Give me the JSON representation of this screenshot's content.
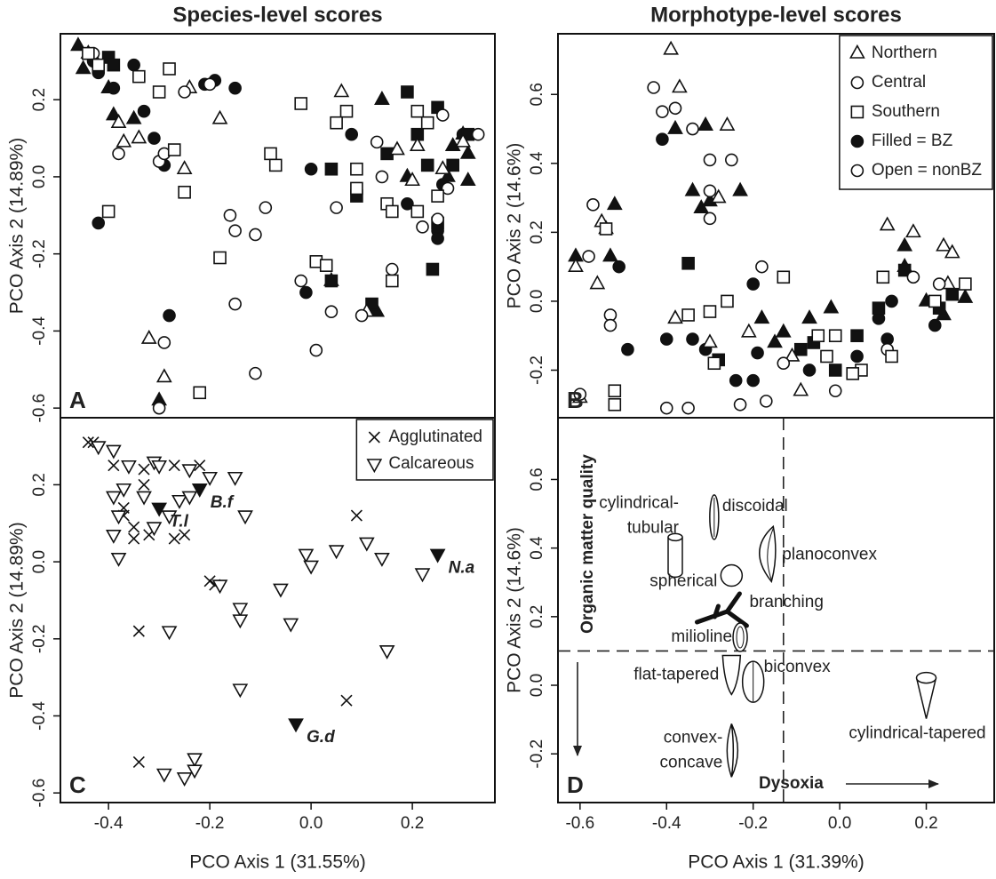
{
  "chart_data": [
    {
      "type": "scatter",
      "panel_label": "A",
      "title": "Species-level scores",
      "ylabel": "PCO Axis 2 (14.89%)",
      "xlim": [
        -0.495,
        0.363
      ],
      "ylim": [
        -0.625,
        0.371
      ],
      "yticks": [
        -0.6,
        -0.4,
        -0.2,
        {
          "value": 0,
          "label": "0.0"
        },
        0.2
      ],
      "series": [
        {
          "marker": "triangle",
          "filled": true,
          "x": [
            -0.46,
            -0.44,
            -0.45,
            -0.4,
            -0.39,
            -0.35,
            0.14,
            0.28,
            0.3,
            0.27,
            0.31,
            0.19,
            0.04,
            0.13,
            0.12,
            -0.3,
            0.31
          ],
          "y": [
            0.34,
            0.32,
            0.28,
            0.23,
            0.16,
            0.15,
            0.2,
            0.08,
            0.11,
            0.0,
            -0.01,
            0.0,
            -0.27,
            -0.35,
            -0.35,
            -0.58,
            0.06
          ]
        },
        {
          "marker": "circle",
          "filled": true,
          "x": [
            -0.43,
            -0.42,
            -0.35,
            -0.39,
            -0.33,
            -0.31,
            -0.29,
            -0.21,
            -0.19,
            -0.15,
            -0.42,
            -0.28,
            0.0,
            -0.01,
            0.08,
            0.25,
            0.25,
            0.19,
            0.26,
            0.3
          ],
          "y": [
            0.3,
            0.27,
            0.29,
            0.23,
            0.17,
            0.1,
            0.03,
            0.24,
            0.25,
            0.23,
            -0.12,
            -0.36,
            0.02,
            -0.3,
            0.11,
            -0.14,
            -0.16,
            -0.07,
            -0.02,
            0.11
          ]
        },
        {
          "marker": "square",
          "filled": true,
          "x": [
            -0.4,
            -0.39,
            0.19,
            0.25,
            0.31,
            0.28,
            0.21,
            0.23,
            0.04,
            0.09,
            0.24,
            0.25,
            0.12,
            0.15,
            0.04
          ],
          "y": [
            0.31,
            0.29,
            0.22,
            0.18,
            0.11,
            0.03,
            0.11,
            0.03,
            0.02,
            -0.05,
            -0.24,
            -0.12,
            -0.33,
            0.06,
            -0.27
          ]
        },
        {
          "marker": "triangle",
          "filled": false,
          "x": [
            -0.24,
            -0.18,
            -0.25,
            0.06,
            0.21,
            -0.34,
            -0.37,
            -0.32,
            -0.29,
            0.17,
            0.2,
            0.3,
            0.26,
            0.11,
            -0.38
          ],
          "y": [
            0.23,
            0.15,
            0.02,
            0.22,
            0.08,
            0.1,
            0.09,
            -0.42,
            -0.52,
            0.07,
            -0.01,
            0.09,
            0.02,
            -0.35,
            0.14
          ]
        },
        {
          "marker": "circle",
          "filled": false,
          "x": [
            -0.43,
            -0.25,
            -0.2,
            -0.38,
            -0.3,
            -0.16,
            -0.15,
            -0.11,
            -0.09,
            -0.15,
            -0.11,
            0.01,
            -0.02,
            0.04,
            0.1,
            0.16,
            0.13,
            0.14,
            0.05,
            0.25,
            0.22,
            0.26,
            0.27,
            -0.29,
            -0.3,
            -0.29,
            0.33
          ],
          "y": [
            0.32,
            0.22,
            0.24,
            0.06,
            0.04,
            -0.1,
            -0.14,
            -0.15,
            -0.08,
            -0.33,
            -0.51,
            -0.45,
            -0.27,
            -0.35,
            -0.36,
            -0.24,
            0.09,
            0.0,
            -0.08,
            -0.11,
            -0.13,
            0.16,
            -0.03,
            -0.43,
            -0.6,
            0.06,
            0.11
          ]
        },
        {
          "marker": "square",
          "filled": false,
          "x": [
            -0.44,
            -0.42,
            -0.34,
            -0.28,
            -0.3,
            -0.27,
            -0.25,
            -0.18,
            -0.22,
            -0.02,
            0.07,
            0.05,
            -0.08,
            -0.07,
            0.09,
            0.09,
            0.15,
            0.16,
            0.16,
            0.21,
            0.23,
            0.25,
            0.21,
            0.01,
            0.03,
            -0.4
          ],
          "y": [
            0.32,
            0.29,
            0.26,
            0.28,
            0.22,
            0.07,
            -0.04,
            -0.21,
            -0.56,
            0.19,
            0.17,
            0.14,
            0.06,
            0.03,
            0.02,
            -0.03,
            -0.07,
            -0.09,
            -0.27,
            0.17,
            0.14,
            -0.05,
            -0.09,
            -0.22,
            -0.23,
            -0.09
          ]
        }
      ]
    },
    {
      "type": "scatter",
      "panel_label": "B",
      "title": "Morphotype-level scores",
      "ylabel": "PCO Axis 2 (14.6%)",
      "xlim": [
        -0.651,
        0.357
      ],
      "ylim": [
        -0.338,
        0.776
      ],
      "yticks": [
        -0.2,
        {
          "value": 0,
          "label": "0.0"
        },
        0.2,
        0.4,
        0.6
      ],
      "series": [
        {
          "marker": "triangle",
          "filled": true,
          "x": [
            -0.38,
            -0.31,
            -0.34,
            -0.32,
            -0.3,
            -0.23,
            -0.52,
            -0.54,
            -0.61,
            -0.53,
            -0.18,
            -0.13,
            -0.07,
            -0.02,
            0.15,
            0.15,
            0.2,
            0.24,
            0.29,
            -0.15
          ],
          "y": [
            0.5,
            0.51,
            0.32,
            0.27,
            0.29,
            0.32,
            0.28,
            0.21,
            0.13,
            0.13,
            -0.05,
            -0.09,
            -0.05,
            -0.02,
            0.16,
            0.1,
            0.0,
            -0.04,
            0.01,
            -0.12
          ]
        },
        {
          "marker": "circle",
          "filled": true,
          "x": [
            -0.41,
            -0.51,
            -0.49,
            -0.4,
            -0.34,
            -0.31,
            -0.24,
            -0.2,
            -0.19,
            -0.2,
            -0.07,
            0.04,
            0.09,
            0.12,
            0.22,
            0.11
          ],
          "y": [
            0.47,
            0.1,
            -0.14,
            -0.11,
            -0.11,
            -0.14,
            -0.23,
            -0.23,
            -0.15,
            0.05,
            -0.2,
            -0.16,
            -0.05,
            0.0,
            -0.07,
            -0.11
          ]
        },
        {
          "marker": "square",
          "filled": true,
          "x": [
            -0.35,
            -0.28,
            -0.09,
            -0.06,
            0.04,
            0.15,
            0.23,
            0.26,
            0.09,
            -0.01
          ],
          "y": [
            0.11,
            -0.17,
            -0.14,
            -0.12,
            -0.1,
            0.09,
            -0.02,
            0.02,
            -0.02,
            -0.2
          ]
        },
        {
          "marker": "triangle",
          "filled": false,
          "x": [
            -0.39,
            -0.37,
            -0.26,
            -0.28,
            -0.55,
            -0.61,
            -0.56,
            -0.6,
            -0.38,
            -0.3,
            -0.21,
            -0.11,
            0.11,
            0.17,
            0.24,
            0.26,
            -0.09,
            0.25
          ],
          "y": [
            0.73,
            0.62,
            0.51,
            0.3,
            0.23,
            0.1,
            0.05,
            -0.28,
            -0.05,
            -0.12,
            -0.09,
            -0.16,
            0.22,
            0.2,
            0.16,
            0.14,
            -0.26,
            0.05
          ]
        },
        {
          "marker": "circle",
          "filled": false,
          "x": [
            -0.43,
            -0.41,
            -0.38,
            -0.34,
            -0.3,
            -0.3,
            -0.3,
            -0.25,
            -0.57,
            -0.58,
            -0.53,
            -0.53,
            -0.4,
            -0.35,
            -0.23,
            -0.17,
            -0.18,
            -0.13,
            -0.01,
            0.11,
            0.17,
            0.23,
            -0.6
          ],
          "y": [
            0.62,
            0.55,
            0.56,
            0.5,
            0.41,
            0.32,
            0.24,
            0.41,
            0.28,
            0.13,
            -0.04,
            -0.07,
            -0.31,
            -0.31,
            -0.3,
            -0.29,
            0.1,
            -0.18,
            -0.26,
            -0.14,
            0.07,
            0.05,
            -0.27
          ]
        },
        {
          "marker": "square",
          "filled": false,
          "x": [
            -0.54,
            -0.52,
            -0.52,
            -0.35,
            -0.3,
            -0.29,
            -0.26,
            -0.13,
            -0.05,
            -0.03,
            -0.01,
            0.05,
            0.1,
            0.12,
            0.22,
            0.29,
            0.03
          ],
          "y": [
            0.21,
            -0.26,
            -0.3,
            -0.04,
            -0.03,
            -0.18,
            0.0,
            0.07,
            -0.1,
            -0.16,
            -0.1,
            -0.2,
            0.07,
            -0.16,
            0.0,
            0.05,
            -0.21
          ]
        }
      ],
      "legend": {
        "position": "top-right",
        "entries": [
          {
            "label": "Northern",
            "marker": "triangle",
            "filled": false
          },
          {
            "label": "Central",
            "marker": "circle",
            "filled": false
          },
          {
            "label": "Southern",
            "marker": "square",
            "filled": false
          },
          {
            "label": "Filled = BZ",
            "marker": "circle",
            "filled": true
          },
          {
            "label": "Open = nonBZ",
            "marker": "circle",
            "filled": false
          }
        ]
      }
    },
    {
      "type": "scatter",
      "panel_label": "C",
      "ylabel": "PCO Axis 2 (14.89%)",
      "xlabel": "PCO Axis 1 (31.55%)",
      "xlim": [
        -0.495,
        0.363
      ],
      "ylim": [
        -0.625,
        0.374
      ],
      "xticks": [
        -0.4,
        -0.2,
        {
          "value": 0,
          "label": "0.0"
        },
        0.2
      ],
      "yticks": [
        -0.6,
        -0.4,
        -0.2,
        {
          "value": 0,
          "label": "0.0"
        },
        0.2
      ],
      "series": [
        {
          "name": "Agglutinated",
          "marker": "x",
          "filled": false,
          "x": [
            -0.44,
            -0.43,
            -0.39,
            -0.33,
            -0.33,
            -0.27,
            -0.22,
            -0.37,
            -0.37,
            -0.35,
            -0.35,
            -0.32,
            -0.25,
            -0.2,
            -0.19,
            -0.34,
            0.09,
            0.07,
            -0.34,
            -0.27
          ],
          "y": [
            0.31,
            0.31,
            0.25,
            0.24,
            0.2,
            0.25,
            0.25,
            0.14,
            0.12,
            0.09,
            0.06,
            0.07,
            0.07,
            -0.05,
            -0.06,
            -0.18,
            0.12,
            -0.36,
            -0.52,
            0.06
          ]
        },
        {
          "name": "Calcareous",
          "marker": "triangle-down",
          "filled": false,
          "x": [
            -0.42,
            -0.39,
            -0.36,
            -0.31,
            -0.3,
            -0.24,
            -0.2,
            -0.15,
            -0.39,
            -0.37,
            -0.33,
            -0.26,
            -0.24,
            -0.38,
            -0.39,
            -0.38,
            -0.31,
            -0.28,
            -0.13,
            -0.06,
            -0.01,
            0.0,
            0.05,
            0.11,
            0.14,
            0.22,
            -0.18,
            -0.14,
            -0.14,
            -0.04,
            -0.28,
            0.15,
            -0.14,
            -0.23,
            -0.23,
            -0.25,
            -0.29
          ],
          "y": [
            0.3,
            0.29,
            0.25,
            0.26,
            0.25,
            0.24,
            0.22,
            0.22,
            0.17,
            0.19,
            0.17,
            0.16,
            0.17,
            0.12,
            0.07,
            0.01,
            0.09,
            0.12,
            0.12,
            -0.07,
            0.02,
            -0.01,
            0.03,
            0.05,
            0.01,
            -0.03,
            -0.06,
            -0.12,
            -0.15,
            -0.16,
            -0.18,
            -0.23,
            -0.33,
            -0.51,
            -0.54,
            -0.56,
            -0.55
          ]
        },
        {
          "marker": "triangle-down",
          "filled": true,
          "x": [
            -0.22,
            -0.3,
            0.25,
            -0.03
          ],
          "y": [
            0.19,
            0.14,
            0.02,
            -0.42
          ],
          "point_labels": [
            "B.f",
            "T.l",
            "N.a",
            "G.d"
          ]
        }
      ],
      "legend": {
        "position": "top-right"
      }
    },
    {
      "type": "morphospace",
      "panel_label": "D",
      "ylabel": "PCO Axis 2 (14.6%)",
      "xlabel": "PCO Axis 1 (31.39%)",
      "xlim": [
        -0.651,
        0.357
      ],
      "ylim": [
        -0.342,
        0.78
      ],
      "xticks": [
        -0.6,
        -0.4,
        -0.2,
        {
          "value": 0,
          "label": "0.0"
        },
        0.2
      ],
      "yticks": [
        -0.2,
        {
          "value": 0,
          "label": "0.0"
        },
        0.2,
        0.4,
        0.6
      ],
      "reference_lines": {
        "x": -0.13,
        "y": 0.1
      },
      "y_arrow_label": "Organic matter quality",
      "x_arrow_label": "Dysoxia",
      "morphotypes": {
        "labels": [
          [
            "cylindrical-",
            "tubular"
          ],
          [
            "discoidal"
          ],
          [
            "planoconvex"
          ],
          [
            "spherical"
          ],
          [
            "branching"
          ],
          [
            "milioline"
          ],
          [
            "flat-tapered"
          ],
          [
            "biconvex"
          ],
          [
            "convex-",
            "concave"
          ],
          [
            "cylindrical-tapered"
          ]
        ],
        "x": [
          -0.38,
          -0.29,
          -0.17,
          -0.25,
          -0.26,
          -0.23,
          -0.25,
          -0.2,
          -0.25,
          0.2
        ],
        "y": [
          0.38,
          0.49,
          0.38,
          0.32,
          0.21,
          0.14,
          0.03,
          0.01,
          -0.19,
          -0.03
        ]
      }
    }
  ]
}
